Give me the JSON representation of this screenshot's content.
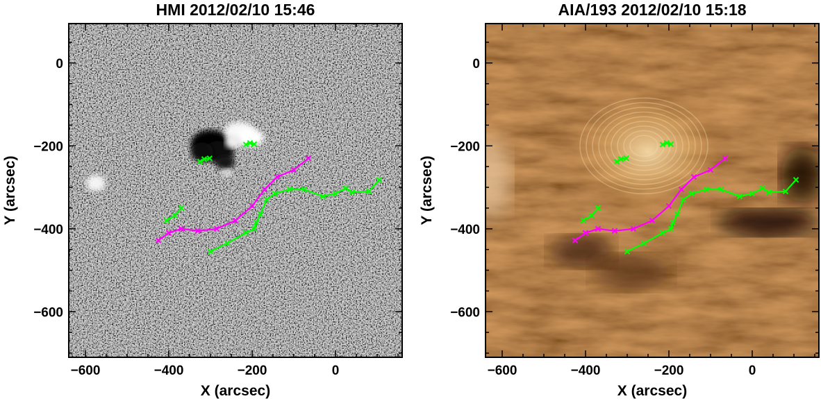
{
  "panels": [
    {
      "id": "hmi",
      "title": "HMI 2012/02/10 15:46",
      "style": "magnetogram",
      "xlabel": "X (arcsec)",
      "ylabel": "Y (arcsec)",
      "xlim": [
        -640,
        160
      ],
      "ylim": [
        -710,
        95
      ],
      "xticks": [
        -600,
        -400,
        -200,
        0
      ],
      "yticks": [
        0,
        -200,
        -400,
        -600
      ],
      "xtick_labels": [
        "−600",
        "−400",
        "−200",
        "0"
      ],
      "ytick_labels": [
        "0",
        "−200",
        "−400",
        "−600"
      ]
    },
    {
      "id": "aia",
      "title": "AIA/193 2012/02/10 15:18",
      "style": "euv",
      "xlabel": "X (arcsec)",
      "ylabel": "Y (arcsec)",
      "xlim": [
        -640,
        160
      ],
      "ylim": [
        -710,
        95
      ],
      "xticks": [
        -600,
        -400,
        -200,
        0
      ],
      "yticks": [
        0,
        -200,
        -400,
        -600
      ],
      "xtick_labels": [
        "−600",
        "−400",
        "−200",
        "0"
      ],
      "ytick_labels": [
        "0",
        "−200",
        "−400",
        "−600"
      ]
    }
  ],
  "traces": [
    {
      "color": "#ff00ff",
      "points": [
        [
          -425,
          -428
        ],
        [
          -400,
          -410
        ],
        [
          -370,
          -400
        ],
        [
          -330,
          -405
        ],
        [
          -285,
          -400
        ],
        [
          -240,
          -380
        ],
        [
          -200,
          -345
        ],
        [
          -170,
          -305
        ],
        [
          -140,
          -275
        ],
        [
          -100,
          -258
        ],
        [
          -65,
          -230
        ]
      ]
    },
    {
      "color": "#00ff00",
      "points": [
        [
          -300,
          -455
        ],
        [
          -260,
          -435
        ],
        [
          -215,
          -410
        ],
        [
          -195,
          -400
        ],
        [
          -190,
          -385
        ],
        [
          -180,
          -365
        ],
        [
          -165,
          -330
        ],
        [
          -145,
          -315
        ],
        [
          -110,
          -305
        ],
        [
          -75,
          -305
        ],
        [
          -30,
          -322
        ],
        [
          0,
          -315
        ],
        [
          25,
          -302
        ],
        [
          40,
          -312
        ],
        [
          80,
          -310
        ],
        [
          105,
          -282
        ]
      ]
    },
    {
      "color": "#00ff00",
      "points": [
        [
          -405,
          -380
        ],
        [
          -385,
          -368
        ],
        [
          -370,
          -350
        ]
      ]
    },
    {
      "color": "#00ff00",
      "points": [
        [
          -325,
          -238
        ],
        [
          -315,
          -232
        ],
        [
          -302,
          -230
        ]
      ]
    },
    {
      "color": "#00ff00",
      "points": [
        [
          -215,
          -197
        ],
        [
          -205,
          -193
        ],
        [
          -195,
          -196
        ]
      ]
    }
  ]
}
